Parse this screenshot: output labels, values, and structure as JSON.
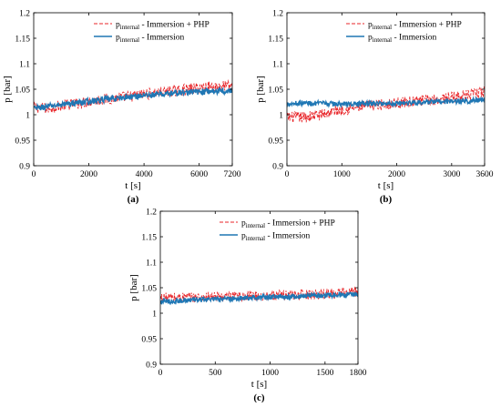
{
  "chart_data": [
    {
      "type": "line",
      "panel_label": "(a)",
      "xlabel": "t [s]",
      "ylabel": "p [bar]",
      "xlim": [
        0,
        7200
      ],
      "ylim": [
        0.9,
        1.2
      ],
      "xticks": [
        0,
        2000,
        4000,
        6000,
        7200
      ],
      "yticks": [
        0.9,
        0.95,
        1,
        1.05,
        1.1,
        1.15,
        1.2
      ],
      "ytick_labels": [
        "0.9",
        "0.95",
        "1",
        "1.05",
        "1.1",
        "1.15",
        "1.2"
      ],
      "grid": false,
      "legend_position": "top-right",
      "series": [
        {
          "name_main": "p",
          "name_sub": "internal",
          "name_rest": " - Immersion + PHP",
          "color": "#e8262a",
          "style": "dashed",
          "noise": 0.011,
          "x": [
            0,
            500,
            1000,
            1500,
            2000,
            2500,
            3000,
            3500,
            4000,
            4500,
            5000,
            5500,
            6000,
            6500,
            7200
          ],
          "y": [
            1.015,
            1.012,
            1.018,
            1.022,
            1.026,
            1.03,
            1.033,
            1.036,
            1.04,
            1.043,
            1.046,
            1.049,
            1.053,
            1.055,
            1.057
          ]
        },
        {
          "name_main": "p",
          "name_sub": "internal",
          "name_rest": " - Immersion",
          "color": "#1f77b4",
          "style": "solid",
          "noise": 0.006,
          "x": [
            0,
            500,
            1000,
            1500,
            2000,
            2500,
            3000,
            3500,
            4000,
            4500,
            5000,
            5500,
            6000,
            6500,
            7200
          ],
          "y": [
            1.012,
            1.016,
            1.02,
            1.023,
            1.026,
            1.029,
            1.032,
            1.035,
            1.038,
            1.04,
            1.042,
            1.044,
            1.045,
            1.046,
            1.047
          ]
        }
      ]
    },
    {
      "type": "line",
      "panel_label": "(b)",
      "xlabel": "t [s]",
      "ylabel": "p [bar]",
      "xlim": [
        0,
        3600
      ],
      "ylim": [
        0.9,
        1.2
      ],
      "xticks": [
        0,
        1000,
        2000,
        3000,
        3600
      ],
      "yticks": [
        0.9,
        0.95,
        1,
        1.05,
        1.1,
        1.15,
        1.2
      ],
      "ytick_labels": [
        "0.9",
        "0.95",
        "1",
        "1.05",
        "1.1",
        "1.15",
        "1.2"
      ],
      "grid": false,
      "legend_position": "top-right",
      "series": [
        {
          "name_main": "p",
          "name_sub": "internal",
          "name_rest": " - Immersion + PHP",
          "color": "#e8262a",
          "style": "dashed",
          "noise": 0.011,
          "x": [
            0,
            300,
            600,
            900,
            1200,
            1500,
            1800,
            2100,
            2400,
            2700,
            3000,
            3300,
            3600
          ],
          "y": [
            0.995,
            0.995,
            1.0,
            1.008,
            1.013,
            1.018,
            1.021,
            1.024,
            1.027,
            1.03,
            1.034,
            1.038,
            1.045
          ]
        },
        {
          "name_main": "p",
          "name_sub": "internal",
          "name_rest": " - Immersion",
          "color": "#1f77b4",
          "style": "solid",
          "noise": 0.005,
          "x": [
            0,
            300,
            600,
            900,
            1200,
            1500,
            1800,
            2100,
            2400,
            2700,
            3000,
            3300,
            3600
          ],
          "y": [
            1.022,
            1.023,
            1.022,
            1.021,
            1.021,
            1.022,
            1.022,
            1.023,
            1.024,
            1.025,
            1.026,
            1.027,
            1.03
          ]
        }
      ]
    },
    {
      "type": "line",
      "panel_label": "(c)",
      "xlabel": "t [s]",
      "ylabel": "p [bar]",
      "xlim": [
        0,
        1800
      ],
      "ylim": [
        0.9,
        1.2
      ],
      "xticks": [
        0,
        500,
        1000,
        1500,
        1800
      ],
      "yticks": [
        0.9,
        0.95,
        1,
        1.05,
        1.1,
        1.15,
        1.2
      ],
      "ytick_labels": [
        "0.9",
        "0.95",
        "1",
        "1.05",
        "1.1",
        "1.15",
        "1.2"
      ],
      "grid": false,
      "legend_position": "top-right",
      "series": [
        {
          "name_main": "p",
          "name_sub": "internal",
          "name_rest": " - Immersion + PHP",
          "color": "#e8262a",
          "style": "dashed",
          "noise": 0.01,
          "x": [
            0,
            150,
            300,
            450,
            600,
            750,
            900,
            1050,
            1200,
            1350,
            1500,
            1650,
            1800
          ],
          "y": [
            1.03,
            1.031,
            1.031,
            1.032,
            1.032,
            1.033,
            1.034,
            1.035,
            1.036,
            1.037,
            1.038,
            1.04,
            1.042
          ]
        },
        {
          "name_main": "p",
          "name_sub": "internal",
          "name_rest": " - Immersion",
          "color": "#1f77b4",
          "style": "solid",
          "noise": 0.005,
          "x": [
            0,
            150,
            300,
            450,
            600,
            750,
            900,
            1050,
            1200,
            1350,
            1500,
            1650,
            1800
          ],
          "y": [
            1.022,
            1.024,
            1.026,
            1.027,
            1.028,
            1.03,
            1.031,
            1.032,
            1.033,
            1.034,
            1.035,
            1.036,
            1.038
          ]
        }
      ]
    }
  ]
}
